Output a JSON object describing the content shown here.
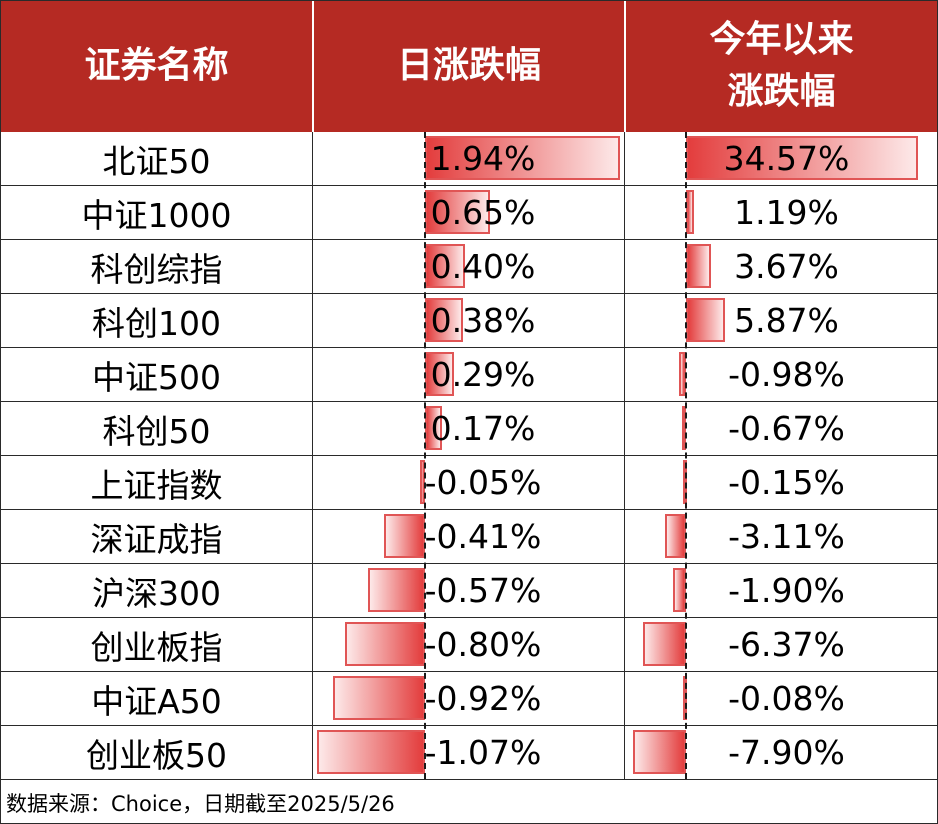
{
  "chart_data": {
    "type": "table",
    "columns": [
      "证券名称",
      "日涨跌幅",
      "今年以来\n涨跌幅"
    ],
    "header_lines": {
      "name": "证券名称",
      "daily": "日涨跌幅",
      "ytd_line1": "今年以来",
      "ytd_line2": "涨跌幅"
    },
    "rows": [
      {
        "name": "北证50",
        "daily": 1.94,
        "daily_label": "1.94%",
        "ytd": 34.57,
        "ytd_label": "34.57%"
      },
      {
        "name": "中证1000",
        "daily": 0.65,
        "daily_label": "0.65%",
        "ytd": 1.19,
        "ytd_label": "1.19%"
      },
      {
        "name": "科创综指",
        "daily": 0.4,
        "daily_label": "0.40%",
        "ytd": 3.67,
        "ytd_label": "3.67%"
      },
      {
        "name": "科创100",
        "daily": 0.38,
        "daily_label": "0.38%",
        "ytd": 5.87,
        "ytd_label": "5.87%"
      },
      {
        "name": "中证500",
        "daily": 0.29,
        "daily_label": "0.29%",
        "ytd": -0.98,
        "ytd_label": "-0.98%"
      },
      {
        "name": "科创50",
        "daily": 0.17,
        "daily_label": "0.17%",
        "ytd": -0.67,
        "ytd_label": "-0.67%"
      },
      {
        "name": "上证指数",
        "daily": -0.05,
        "daily_label": "-0.05%",
        "ytd": -0.15,
        "ytd_label": "-0.15%"
      },
      {
        "name": "深证成指",
        "daily": -0.41,
        "daily_label": "-0.41%",
        "ytd": -3.11,
        "ytd_label": "-3.11%"
      },
      {
        "name": "沪深300",
        "daily": -0.57,
        "daily_label": "-0.57%",
        "ytd": -1.9,
        "ytd_label": "-1.90%"
      },
      {
        "name": "创业板指",
        "daily": -0.8,
        "daily_label": "-0.80%",
        "ytd": -6.37,
        "ytd_label": "-6.37%"
      },
      {
        "name": "中证A50",
        "daily": -0.92,
        "daily_label": "-0.92%",
        "ytd": -0.08,
        "ytd_label": "-0.08%"
      },
      {
        "name": "创业板50",
        "daily": -1.07,
        "daily_label": "-1.07%",
        "ytd": -7.9,
        "ytd_label": "-7.90%"
      }
    ]
  },
  "colors": {
    "header_bg": "#b52a23",
    "header_text": "#ffffff",
    "bar_dark": "#e33d3d",
    "bar_light": "#fde9e9",
    "bar_border": "#e05555"
  },
  "source": "数据来源：Choice，日期截至2025/5/26"
}
